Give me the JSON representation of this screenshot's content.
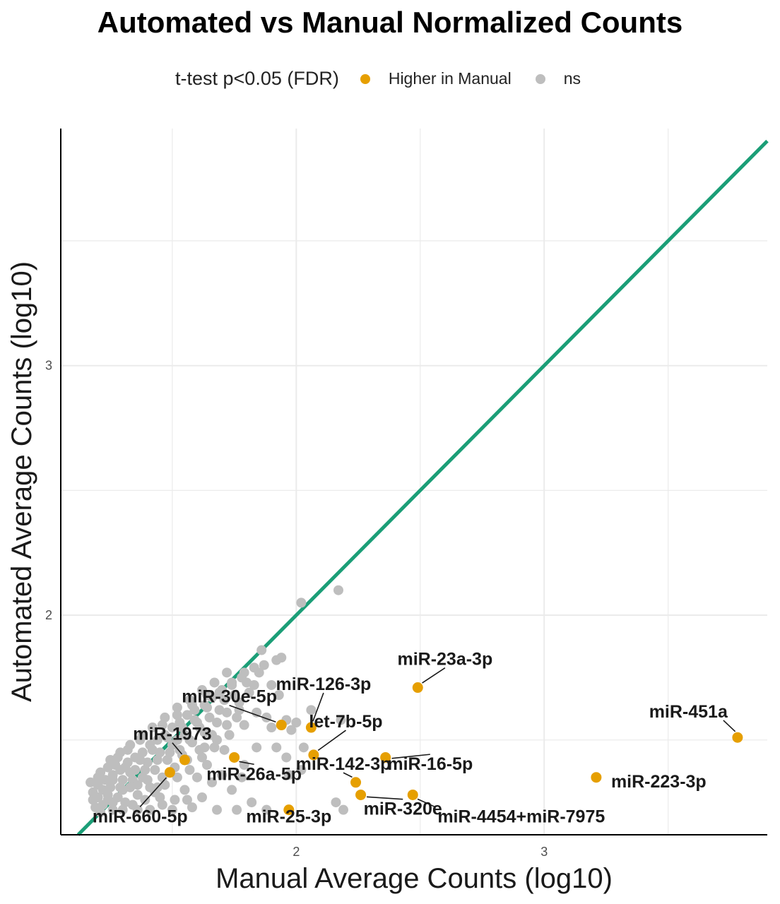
{
  "chart_data": {
    "type": "scatter",
    "title": "Automated vs Manual Normalized Counts",
    "xlabel": "Manual Average Counts (log10)",
    "ylabel": "Automated Average Counts (log10)",
    "xlim": [
      1.05,
      3.9
    ],
    "ylim": [
      1.12,
      3.95
    ],
    "x_ticks": [
      2,
      3
    ],
    "y_ticks": [
      2,
      3
    ],
    "x_grid": [
      1.5,
      2,
      2.5,
      3,
      3.5
    ],
    "y_grid": [
      1.5,
      2,
      2.5,
      3,
      3.5
    ],
    "grid": true,
    "legend": {
      "title": "t-test p<0.05 (FDR)",
      "position": "top",
      "entries": [
        {
          "label": "Higher in Manual",
          "color": "#E69F00"
        },
        {
          "label": "ns",
          "color": "#BEBEBE"
        }
      ]
    },
    "reference_line": {
      "type": "identity",
      "color": "#1B9E77"
    },
    "series": [
      {
        "name": "Higher in Manual",
        "color": "#E69F00",
        "points": [
          {
            "x": 3.78,
            "y": 1.51,
            "label": "miR-451a",
            "lx": 3.74,
            "ly": 1.59,
            "anchor": "end"
          },
          {
            "x": 3.21,
            "y": 1.35,
            "label": "miR-223-3p",
            "lx": 3.27,
            "ly": 1.31,
            "anchor": "start"
          },
          {
            "x": 2.49,
            "y": 1.71,
            "label": "miR-23a-3p",
            "lx": 2.6,
            "ly": 1.8,
            "anchor": "middle"
          },
          {
            "x": 2.06,
            "y": 1.55,
            "label": "miR-126-3p",
            "lx": 2.11,
            "ly": 1.7,
            "anchor": "middle"
          },
          {
            "x": 1.94,
            "y": 1.56,
            "label": "miR-30e-5p",
            "lx": 1.73,
            "ly": 1.65,
            "anchor": "middle"
          },
          {
            "x": 2.07,
            "y": 1.44,
            "label": "let-7b-5p",
            "lx": 2.2,
            "ly": 1.55,
            "anchor": "middle"
          },
          {
            "x": 2.36,
            "y": 1.43,
            "label": "miR-16-5p",
            "lx": 2.54,
            "ly": 1.38,
            "anchor": "middle"
          },
          {
            "x": 2.24,
            "y": 1.33,
            "label": "miR-142-3p",
            "lx": 2.19,
            "ly": 1.38,
            "anchor": "middle"
          },
          {
            "x": 1.97,
            "y": 1.22,
            "label": "miR-25-3p",
            "lx": 1.97,
            "ly": 1.17,
            "anchor": "middle"
          },
          {
            "x": 2.26,
            "y": 1.28,
            "label": "miR-320e",
            "lx": 2.43,
            "ly": 1.2,
            "anchor": "middle"
          },
          {
            "x": 2.47,
            "y": 1.28,
            "label": "miR-4454+miR-7975",
            "lx": 2.57,
            "ly": 1.17,
            "anchor": "start"
          },
          {
            "x": 1.75,
            "y": 1.43,
            "label": "miR-26a-5p",
            "lx": 1.83,
            "ly": 1.34,
            "anchor": "middle"
          },
          {
            "x": 1.55,
            "y": 1.42,
            "label": "miR-1973",
            "lx": 1.5,
            "ly": 1.5,
            "anchor": "middle"
          },
          {
            "x": 1.49,
            "y": 1.37,
            "label": "miR-660-5p",
            "lx": 1.37,
            "ly": 1.17,
            "anchor": "middle"
          }
        ]
      },
      {
        "name": "ns",
        "color": "#BEBEBE",
        "points": [
          {
            "x": 2.17,
            "y": 2.1
          },
          {
            "x": 2.02,
            "y": 2.05
          },
          {
            "x": 1.86,
            "y": 1.86
          },
          {
            "x": 1.94,
            "y": 1.83
          },
          {
            "x": 1.92,
            "y": 1.82
          },
          {
            "x": 1.83,
            "y": 1.79
          },
          {
            "x": 1.78,
            "y": 1.75
          },
          {
            "x": 1.74,
            "y": 1.72
          },
          {
            "x": 1.7,
            "y": 1.7
          },
          {
            "x": 1.66,
            "y": 1.67
          },
          {
            "x": 1.63,
            "y": 1.64
          },
          {
            "x": 1.59,
            "y": 1.62
          },
          {
            "x": 1.56,
            "y": 1.6
          },
          {
            "x": 1.53,
            "y": 1.57
          },
          {
            "x": 1.5,
            "y": 1.55
          },
          {
            "x": 1.47,
            "y": 1.52
          },
          {
            "x": 1.44,
            "y": 1.5
          },
          {
            "x": 1.41,
            "y": 1.48
          },
          {
            "x": 1.38,
            "y": 1.45
          },
          {
            "x": 1.35,
            "y": 1.43
          },
          {
            "x": 1.32,
            "y": 1.41
          },
          {
            "x": 1.29,
            "y": 1.38
          },
          {
            "x": 1.26,
            "y": 1.36
          },
          {
            "x": 1.23,
            "y": 1.34
          },
          {
            "x": 1.2,
            "y": 1.32
          },
          {
            "x": 1.18,
            "y": 1.29
          },
          {
            "x": 1.6,
            "y": 1.57
          },
          {
            "x": 1.55,
            "y": 1.52
          },
          {
            "x": 1.5,
            "y": 1.48
          },
          {
            "x": 1.45,
            "y": 1.45
          },
          {
            "x": 1.4,
            "y": 1.41
          },
          {
            "x": 1.35,
            "y": 1.38
          },
          {
            "x": 1.3,
            "y": 1.34
          },
          {
            "x": 1.25,
            "y": 1.31
          },
          {
            "x": 1.2,
            "y": 1.27
          },
          {
            "x": 1.22,
            "y": 1.24
          },
          {
            "x": 1.28,
            "y": 1.27
          },
          {
            "x": 1.33,
            "y": 1.31
          },
          {
            "x": 1.38,
            "y": 1.35
          },
          {
            "x": 1.43,
            "y": 1.38
          },
          {
            "x": 1.48,
            "y": 1.42
          },
          {
            "x": 1.53,
            "y": 1.46
          },
          {
            "x": 1.58,
            "y": 1.49
          },
          {
            "x": 1.63,
            "y": 1.53
          },
          {
            "x": 1.68,
            "y": 1.57
          },
          {
            "x": 1.72,
            "y": 1.61
          },
          {
            "x": 1.77,
            "y": 1.65
          },
          {
            "x": 1.81,
            "y": 1.69
          },
          {
            "x": 1.66,
            "y": 1.52
          },
          {
            "x": 1.61,
            "y": 1.46
          },
          {
            "x": 1.56,
            "y": 1.42
          },
          {
            "x": 1.51,
            "y": 1.39
          },
          {
            "x": 1.46,
            "y": 1.35
          },
          {
            "x": 1.41,
            "y": 1.31
          },
          {
            "x": 1.36,
            "y": 1.28
          },
          {
            "x": 1.31,
            "y": 1.25
          },
          {
            "x": 1.26,
            "y": 1.22
          },
          {
            "x": 1.21,
            "y": 1.21
          },
          {
            "x": 1.45,
            "y": 1.27
          },
          {
            "x": 1.55,
            "y": 1.3
          },
          {
            "x": 1.62,
            "y": 1.27
          },
          {
            "x": 1.5,
            "y": 1.22
          },
          {
            "x": 1.41,
            "y": 1.22
          },
          {
            "x": 1.58,
            "y": 1.23
          },
          {
            "x": 1.68,
            "y": 1.22
          },
          {
            "x": 1.74,
            "y": 1.3
          },
          {
            "x": 1.78,
            "y": 1.35
          },
          {
            "x": 1.64,
            "y": 1.4
          },
          {
            "x": 1.71,
            "y": 1.46
          },
          {
            "x": 1.84,
            "y": 1.47
          },
          {
            "x": 1.9,
            "y": 1.55
          },
          {
            "x": 1.82,
            "y": 1.25
          },
          {
            "x": 1.88,
            "y": 1.22
          },
          {
            "x": 1.76,
            "y": 1.22
          },
          {
            "x": 1.79,
            "y": 1.4
          },
          {
            "x": 2.0,
            "y": 1.57
          },
          {
            "x": 2.06,
            "y": 1.62
          },
          {
            "x": 2.18,
            "y": 1.58
          },
          {
            "x": 1.96,
            "y": 1.58
          },
          {
            "x": 1.92,
            "y": 1.47
          },
          {
            "x": 1.96,
            "y": 1.43
          },
          {
            "x": 1.97,
            "y": 1.36
          },
          {
            "x": 2.02,
            "y": 1.38
          },
          {
            "x": 2.16,
            "y": 1.25
          },
          {
            "x": 2.19,
            "y": 1.22
          },
          {
            "x": 1.93,
            "y": 1.68
          },
          {
            "x": 1.88,
            "y": 1.59
          },
          {
            "x": 1.85,
            "y": 1.77
          },
          {
            "x": 1.9,
            "y": 1.72
          },
          {
            "x": 1.87,
            "y": 1.8
          },
          {
            "x": 1.6,
            "y": 1.35
          },
          {
            "x": 1.66,
            "y": 1.33
          },
          {
            "x": 1.7,
            "y": 1.36
          },
          {
            "x": 1.3,
            "y": 1.3
          },
          {
            "x": 1.34,
            "y": 1.24
          },
          {
            "x": 1.24,
            "y": 1.28
          },
          {
            "x": 1.39,
            "y": 1.26
          },
          {
            "x": 1.44,
            "y": 1.31
          },
          {
            "x": 1.27,
            "y": 1.4
          },
          {
            "x": 1.32,
            "y": 1.46
          },
          {
            "x": 1.37,
            "y": 1.5
          },
          {
            "x": 1.42,
            "y": 1.55
          },
          {
            "x": 1.47,
            "y": 1.59
          },
          {
            "x": 1.52,
            "y": 1.63
          },
          {
            "x": 1.57,
            "y": 1.66
          },
          {
            "x": 1.62,
            "y": 1.7
          },
          {
            "x": 1.67,
            "y": 1.73
          },
          {
            "x": 1.72,
            "y": 1.77
          },
          {
            "x": 1.76,
            "y": 1.59
          },
          {
            "x": 1.69,
            "y": 1.62
          },
          {
            "x": 1.65,
            "y": 1.59
          },
          {
            "x": 1.61,
            "y": 1.55
          },
          {
            "x": 1.57,
            "y": 1.5
          },
          {
            "x": 1.52,
            "y": 1.5
          },
          {
            "x": 1.49,
            "y": 1.45
          },
          {
            "x": 1.44,
            "y": 1.42
          },
          {
            "x": 1.39,
            "y": 1.38
          },
          {
            "x": 1.34,
            "y": 1.34
          },
          {
            "x": 1.29,
            "y": 1.31
          },
          {
            "x": 1.24,
            "y": 1.26
          },
          {
            "x": 1.19,
            "y": 1.23
          },
          {
            "x": 1.17,
            "y": 1.33
          },
          {
            "x": 1.21,
            "y": 1.37
          },
          {
            "x": 1.25,
            "y": 1.42
          },
          {
            "x": 1.29,
            "y": 1.45
          },
          {
            "x": 1.33,
            "y": 1.37
          },
          {
            "x": 1.36,
            "y": 1.32
          },
          {
            "x": 1.4,
            "y": 1.34
          },
          {
            "x": 1.43,
            "y": 1.29
          },
          {
            "x": 1.47,
            "y": 1.32
          },
          {
            "x": 1.52,
            "y": 1.35
          },
          {
            "x": 1.57,
            "y": 1.38
          },
          {
            "x": 1.62,
            "y": 1.43
          },
          {
            "x": 1.67,
            "y": 1.47
          },
          {
            "x": 1.73,
            "y": 1.52
          },
          {
            "x": 1.79,
            "y": 1.56
          },
          {
            "x": 1.84,
            "y": 1.61
          },
          {
            "x": 1.8,
            "y": 1.73
          },
          {
            "x": 1.75,
            "y": 1.68
          },
          {
            "x": 1.71,
            "y": 1.66
          },
          {
            "x": 1.64,
            "y": 1.63
          },
          {
            "x": 1.59,
            "y": 1.58
          },
          {
            "x": 1.54,
            "y": 1.55
          },
          {
            "x": 1.48,
            "y": 1.51
          },
          {
            "x": 1.42,
            "y": 1.46
          },
          {
            "x": 1.37,
            "y": 1.42
          },
          {
            "x": 1.31,
            "y": 1.39
          },
          {
            "x": 1.26,
            "y": 1.34
          },
          {
            "x": 1.22,
            "y": 1.3
          },
          {
            "x": 1.18,
            "y": 1.26
          },
          {
            "x": 1.2,
            "y": 1.35
          },
          {
            "x": 1.24,
            "y": 1.39
          },
          {
            "x": 1.28,
            "y": 1.43
          },
          {
            "x": 1.33,
            "y": 1.48
          },
          {
            "x": 1.38,
            "y": 1.52
          },
          {
            "x": 1.46,
            "y": 1.56
          },
          {
            "x": 1.52,
            "y": 1.6
          },
          {
            "x": 1.58,
            "y": 1.64
          },
          {
            "x": 1.64,
            "y": 1.68
          },
          {
            "x": 1.69,
            "y": 1.69
          },
          {
            "x": 1.74,
            "y": 1.73
          },
          {
            "x": 1.79,
            "y": 1.77
          },
          {
            "x": 1.83,
            "y": 1.72
          },
          {
            "x": 1.77,
            "y": 1.62
          },
          {
            "x": 1.72,
            "y": 1.56
          },
          {
            "x": 1.68,
            "y": 1.5
          },
          {
            "x": 1.63,
            "y": 1.47
          },
          {
            "x": 1.54,
            "y": 1.44
          },
          {
            "x": 1.51,
            "y": 1.26
          },
          {
            "x": 1.56,
            "y": 1.26
          },
          {
            "x": 1.46,
            "y": 1.24
          },
          {
            "x": 1.36,
            "y": 1.22
          },
          {
            "x": 1.3,
            "y": 1.22
          },
          {
            "x": 1.26,
            "y": 1.25
          },
          {
            "x": 1.98,
            "y": 1.54
          },
          {
            "x": 2.03,
            "y": 1.47
          }
        ]
      }
    ]
  }
}
